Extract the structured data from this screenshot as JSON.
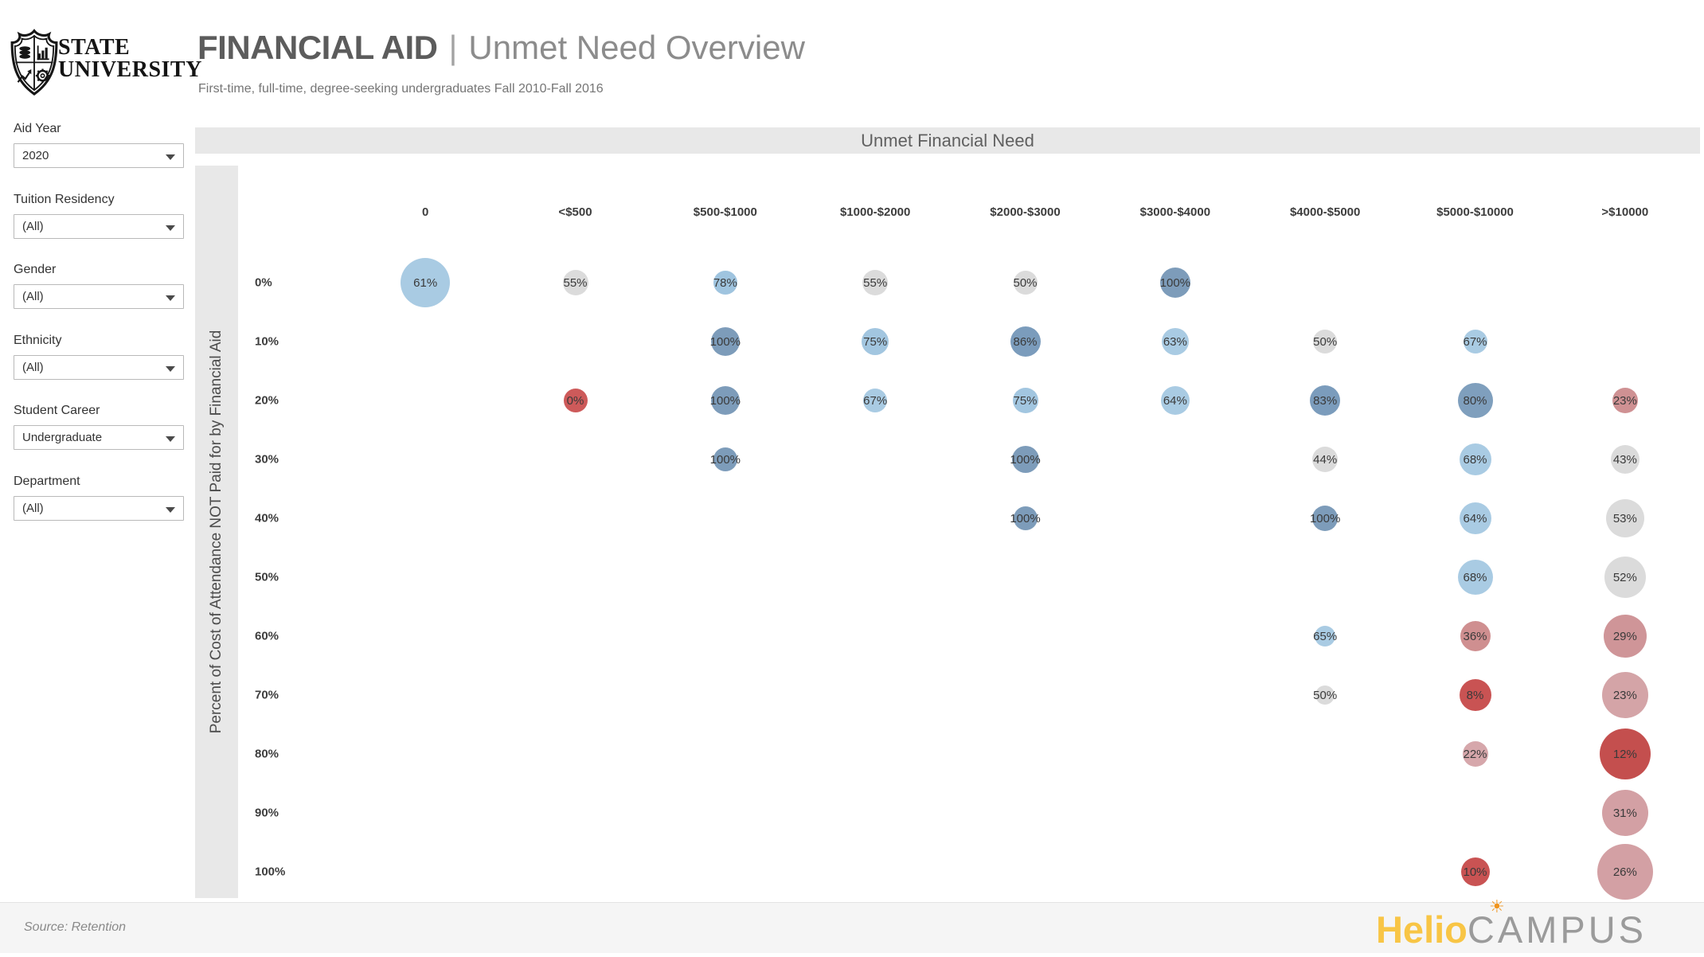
{
  "header": {
    "logo_line1": "STATE",
    "logo_line2": "UNIVERSITY",
    "title_primary": "FINANCIAL AID",
    "title_separator": "|",
    "title_secondary": "Unmet Need Overview",
    "subtitle": "First-time, full-time, degree-seeking undergraduates Fall 2010-Fall 2016"
  },
  "filters": [
    {
      "label": "Aid Year",
      "value": "2020"
    },
    {
      "label": "Tuition Residency",
      "value": "(All)"
    },
    {
      "label": "Gender",
      "value": "(All)"
    },
    {
      "label": "Ethnicity",
      "value": "(All)"
    },
    {
      "label": "Student Career",
      "value": "Undergraduate"
    },
    {
      "label": "Department",
      "value": "(All)"
    }
  ],
  "chart_data": {
    "type": "scatter",
    "subtype": "bubble-matrix",
    "title": "Unmet Financial Need",
    "ylabel": "Percent of Cost of Attendance NOT Paid for by Financial Aid",
    "x_categories": [
      "0",
      "<$500",
      "$500-$1000",
      "$1000-$2000",
      "$2000-$3000",
      "$3000-$4000",
      "$4000-$5000",
      "$5000-$10000",
      ">$10000"
    ],
    "y_categories": [
      "0%",
      "10%",
      "20%",
      "30%",
      "40%",
      "50%",
      "60%",
      "70%",
      "80%",
      "90%",
      "100%"
    ],
    "legend": "bubble color encodes value (red=low, gray=mid, blue=high); bubble area encodes group size",
    "points": [
      {
        "row": "0%",
        "col": "0",
        "value": "61%",
        "size": 62,
        "color": "#a9cbe3"
      },
      {
        "row": "0%",
        "col": "<$500",
        "value": "55%",
        "size": 32,
        "color": "#dbdbdb"
      },
      {
        "row": "0%",
        "col": "$500-$1000",
        "value": "78%",
        "size": 30,
        "color": "#9fc4df"
      },
      {
        "row": "0%",
        "col": "$1000-$2000",
        "value": "55%",
        "size": 32,
        "color": "#dbdbdb"
      },
      {
        "row": "0%",
        "col": "$2000-$3000",
        "value": "50%",
        "size": 30,
        "color": "#dbdbdb"
      },
      {
        "row": "0%",
        "col": "$3000-$4000",
        "value": "100%",
        "size": 38,
        "color": "#7d9cba"
      },
      {
        "row": "10%",
        "col": "$500-$1000",
        "value": "100%",
        "size": 36,
        "color": "#7d9cba"
      },
      {
        "row": "10%",
        "col": "$1000-$2000",
        "value": "75%",
        "size": 34,
        "color": "#a2c6e0"
      },
      {
        "row": "10%",
        "col": "$2000-$3000",
        "value": "86%",
        "size": 38,
        "color": "#7b9cbc"
      },
      {
        "row": "10%",
        "col": "$3000-$4000",
        "value": "63%",
        "size": 34,
        "color": "#a9cbe3"
      },
      {
        "row": "10%",
        "col": "$4000-$5000",
        "value": "50%",
        "size": 30,
        "color": "#dbdbdb"
      },
      {
        "row": "10%",
        "col": "$5000-$10000",
        "value": "67%",
        "size": 30,
        "color": "#a9cbe3"
      },
      {
        "row": "20%",
        "col": "<$500",
        "value": "0%",
        "size": 30,
        "color": "#cd5a5a"
      },
      {
        "row": "20%",
        "col": "$500-$1000",
        "value": "100%",
        "size": 36,
        "color": "#7d9cba"
      },
      {
        "row": "20%",
        "col": "$1000-$2000",
        "value": "67%",
        "size": 30,
        "color": "#a9cbe3"
      },
      {
        "row": "20%",
        "col": "$2000-$3000",
        "value": "75%",
        "size": 32,
        "color": "#a2c6e0"
      },
      {
        "row": "20%",
        "col": "$3000-$4000",
        "value": "64%",
        "size": 36,
        "color": "#a9cbe3"
      },
      {
        "row": "20%",
        "col": "$4000-$5000",
        "value": "83%",
        "size": 38,
        "color": "#7b9cbc"
      },
      {
        "row": "20%",
        "col": "$5000-$10000",
        "value": "80%",
        "size": 44,
        "color": "#7f9fbd"
      },
      {
        "row": "20%",
        "col": ">$10000",
        "value": "23%",
        "size": 32,
        "color": "#cf9193"
      },
      {
        "row": "30%",
        "col": "$500-$1000",
        "value": "100%",
        "size": 30,
        "color": "#7d9cba"
      },
      {
        "row": "30%",
        "col": "$2000-$3000",
        "value": "100%",
        "size": 34,
        "color": "#7d9cba"
      },
      {
        "row": "30%",
        "col": "$4000-$5000",
        "value": "44%",
        "size": 32,
        "color": "#dbdbdb"
      },
      {
        "row": "30%",
        "col": "$5000-$10000",
        "value": "68%",
        "size": 40,
        "color": "#a9cbe3"
      },
      {
        "row": "30%",
        "col": ">$10000",
        "value": "43%",
        "size": 36,
        "color": "#dbdbdb"
      },
      {
        "row": "40%",
        "col": "$2000-$3000",
        "value": "100%",
        "size": 30,
        "color": "#7d9cba"
      },
      {
        "row": "40%",
        "col": "$4000-$5000",
        "value": "100%",
        "size": 32,
        "color": "#7d9cba"
      },
      {
        "row": "40%",
        "col": "$5000-$10000",
        "value": "64%",
        "size": 40,
        "color": "#a9cbe3"
      },
      {
        "row": "40%",
        "col": ">$10000",
        "value": "53%",
        "size": 48,
        "color": "#dbdbdb"
      },
      {
        "row": "50%",
        "col": "$5000-$10000",
        "value": "68%",
        "size": 44,
        "color": "#a9cbe3"
      },
      {
        "row": "50%",
        "col": ">$10000",
        "value": "52%",
        "size": 52,
        "color": "#dbdbdb"
      },
      {
        "row": "60%",
        "col": "$4000-$5000",
        "value": "65%",
        "size": 26,
        "color": "#a9cbe3"
      },
      {
        "row": "60%",
        "col": "$5000-$10000",
        "value": "36%",
        "size": 38,
        "color": "#cf8f90"
      },
      {
        "row": "60%",
        "col": ">$10000",
        "value": "29%",
        "size": 54,
        "color": "#cf9598"
      },
      {
        "row": "70%",
        "col": "$4000-$5000",
        "value": "50%",
        "size": 24,
        "color": "#dbdbdb"
      },
      {
        "row": "70%",
        "col": "$5000-$10000",
        "value": "8%",
        "size": 40,
        "color": "#c95353"
      },
      {
        "row": "70%",
        "col": ">$10000",
        "value": "23%",
        "size": 58,
        "color": "#d4a4a7"
      },
      {
        "row": "80%",
        "col": "$5000-$10000",
        "value": "22%",
        "size": 32,
        "color": "#d6a7ab"
      },
      {
        "row": "80%",
        "col": ">$10000",
        "value": "12%",
        "size": 64,
        "color": "#c44f4e"
      },
      {
        "row": "90%",
        "col": ">$10000",
        "value": "31%",
        "size": 58,
        "color": "#d3a0a4"
      },
      {
        "row": "100%",
        "col": "$5000-$10000",
        "value": "10%",
        "size": 36,
        "color": "#c95353"
      },
      {
        "row": "100%",
        "col": ">$10000",
        "value": "26%",
        "size": 70,
        "color": "#d3a0a4"
      }
    ]
  },
  "footer": {
    "source": "Source: Retention",
    "brand_primary": "Helio",
    "brand_secondary": "CAMPUS",
    "brand_primary_color": "#f8c545",
    "brand_sun_color": "#f0941d"
  }
}
